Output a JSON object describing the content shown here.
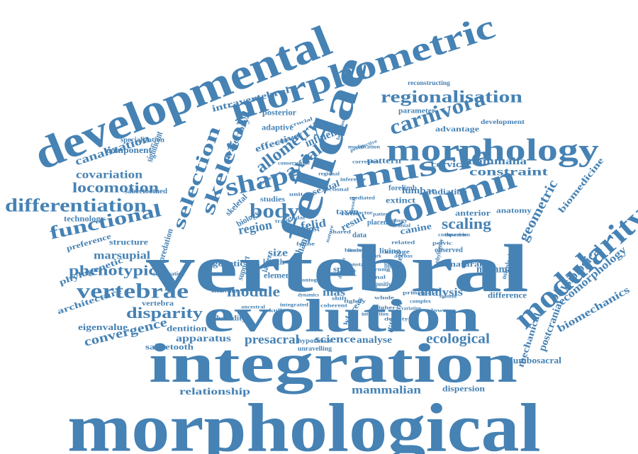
{
  "colors": {
    "text": "#4682b4",
    "background": "#ffffff"
  },
  "words": [
    "morphological",
    "integration",
    "vertebral",
    "evolution",
    "developmental",
    "morphometric",
    "felidae",
    "column",
    "modularity",
    "morphology",
    "muscle",
    "shape",
    "vertebrae",
    "skeleton",
    "selection",
    "carnivora",
    "regionalisation",
    "functional",
    "differentiation",
    "body",
    "locomotion",
    "allometry",
    "phenotypic",
    "disparity",
    "ecological",
    "geometric",
    "mammalian",
    "relationship",
    "presacral",
    "science",
    "apparatus",
    "convergence",
    "axial",
    "module",
    "analysis",
    "scaling",
    "eigenvalue",
    "constraint",
    "mammalia",
    "physiological",
    "ecomorphology",
    "biomechanics",
    "biomedicine",
    "postcranial",
    "mechanical",
    "lumbosacral",
    "dispersion",
    "sabretooth",
    "dentition",
    "heredity",
    "architecture",
    "phylogenetic",
    "marsupial",
    "preference",
    "structure",
    "technology",
    "covariation",
    "canalization",
    "component",
    "specialization",
    "significant",
    "intravertebral",
    "posterior",
    "adaptive",
    "trajectory",
    "influence",
    "effective",
    "reconstructing",
    "parameter",
    "advantage",
    "development",
    "pattern",
    "cervical",
    "radiation",
    "forelimb",
    "lumbar",
    "extinct",
    "anterior",
    "anatomy",
    "canine",
    "mammal",
    "difference",
    "natural",
    "genetic",
    "size",
    "region",
    "felid",
    "cat",
    "mas",
    "observed",
    "osteological",
    "sabretoothed",
    "vertebra",
    "predation",
    "result",
    "sexual",
    "studies",
    "biology",
    "skeletal",
    "element",
    "whereas",
    "analyse",
    "different",
    "support",
    "hypothesis",
    "unravelling",
    "organisation",
    "occurrence",
    "spine",
    "length",
    "larger",
    "change",
    "greater",
    "living",
    "placental",
    "taxon",
    "most",
    "block",
    "data",
    "phylogeny",
    "lineage",
    "conservative",
    "regional",
    "behavioural",
    "modification",
    "interaction",
    "positive",
    "principal",
    "evolutionary",
    "perspective",
    "inference",
    "comparison",
    "crucial",
    "mediated",
    "sectional",
    "thoracic",
    "therefore",
    "correlated",
    "limited",
    "nature",
    "factor",
    "unit",
    "ratio",
    "basis",
    "cranial",
    "pelvic",
    "caudal",
    "shared",
    "related",
    "feline",
    "dimension",
    "ontogeny",
    "constant",
    "traits",
    "across",
    "ancestral",
    "skull",
    "fossil",
    "landmark",
    "pattern",
    "dynamics",
    "whole",
    "coherent",
    "tightly",
    "integrated",
    "strong",
    "signal",
    "ecology",
    "variation",
    "higher",
    "lower",
    "complex",
    "system",
    "shift",
    "density",
    "evolve",
    "distinct"
  ]
}
